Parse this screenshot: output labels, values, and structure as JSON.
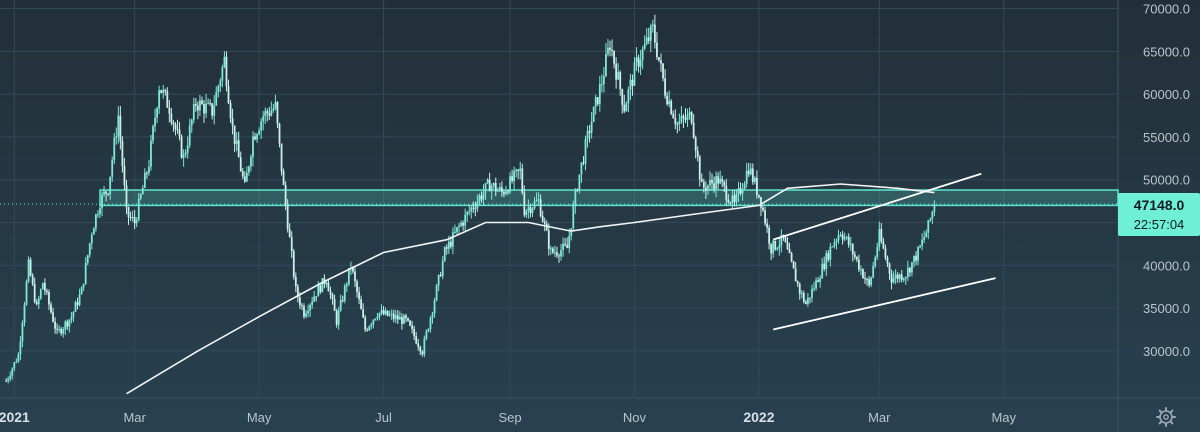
{
  "chart_data": {
    "type": "candlestick",
    "y_ticks": [
      "70000.0",
      "65000.0",
      "60000.0",
      "55000.0",
      "50000.0",
      "45000.0",
      "40000.0",
      "35000.0",
      "30000.0"
    ],
    "y_tick_values": [
      70000,
      65000,
      60000,
      55000,
      50000,
      45000,
      40000,
      35000,
      30000
    ],
    "ylim": [
      24500,
      71000
    ],
    "x_ticks": [
      {
        "label": "2021",
        "date": "2021-01-01",
        "bold": true
      },
      {
        "label": "Mar",
        "date": "2021-03-01",
        "bold": false
      },
      {
        "label": "May",
        "date": "2021-05-01",
        "bold": false
      },
      {
        "label": "Jul",
        "date": "2021-07-01",
        "bold": false
      },
      {
        "label": "Sep",
        "date": "2021-09-01",
        "bold": false
      },
      {
        "label": "Nov",
        "date": "2021-11-01",
        "bold": false
      },
      {
        "label": "2022",
        "date": "2022-01-01",
        "bold": true
      },
      {
        "label": "Mar",
        "date": "2022-03-01",
        "bold": false
      },
      {
        "label": "May",
        "date": "2022-05-01",
        "bold": false
      }
    ],
    "xlim": [
      "2020-12-25",
      "2022-06-26"
    ],
    "close_path": [
      [
        "2020-12-28",
        26500
      ],
      [
        "2021-01-03",
        29500
      ],
      [
        "2021-01-08",
        40000
      ],
      [
        "2021-01-12",
        35000
      ],
      [
        "2021-01-15",
        38000
      ],
      [
        "2021-01-22",
        32000
      ],
      [
        "2021-01-29",
        34000
      ],
      [
        "2021-02-03",
        37000
      ],
      [
        "2021-02-08",
        44000
      ],
      [
        "2021-02-12",
        47500
      ],
      [
        "2021-02-16",
        49000
      ],
      [
        "2021-02-21",
        57500
      ],
      [
        "2021-02-25",
        46000
      ],
      [
        "2021-03-01",
        45000
      ],
      [
        "2021-03-08",
        52000
      ],
      [
        "2021-03-13",
        61000
      ],
      [
        "2021-03-18",
        58500
      ],
      [
        "2021-03-25",
        52500
      ],
      [
        "2021-03-31",
        59000
      ],
      [
        "2021-04-08",
        58000
      ],
      [
        "2021-04-14",
        64000
      ],
      [
        "2021-04-18",
        56000
      ],
      [
        "2021-04-24",
        49000
      ],
      [
        "2021-04-28",
        55000
      ],
      [
        "2021-05-03",
        57500
      ],
      [
        "2021-05-09",
        58500
      ],
      [
        "2021-05-13",
        49000
      ],
      [
        "2021-05-19",
        37000
      ],
      [
        "2021-05-23",
        34500
      ],
      [
        "2021-05-28",
        36500
      ],
      [
        "2021-06-03",
        38500
      ],
      [
        "2021-06-08",
        33500
      ],
      [
        "2021-06-15",
        40000
      ],
      [
        "2021-06-22",
        32500
      ],
      [
        "2021-06-28",
        34500
      ],
      [
        "2021-07-05",
        34000
      ],
      [
        "2021-07-12",
        33500
      ],
      [
        "2021-07-20",
        30000
      ],
      [
        "2021-07-25",
        35000
      ],
      [
        "2021-07-31",
        41500
      ],
      [
        "2021-08-07",
        44500
      ],
      [
        "2021-08-14",
        47000
      ],
      [
        "2021-08-22",
        49500
      ],
      [
        "2021-08-28",
        48500
      ],
      [
        "2021-09-06",
        51000
      ],
      [
        "2021-09-08",
        46500
      ],
      [
        "2021-09-15",
        47500
      ],
      [
        "2021-09-21",
        41500
      ],
      [
        "2021-09-29",
        42000
      ],
      [
        "2021-10-04",
        49500
      ],
      [
        "2021-10-10",
        56000
      ],
      [
        "2021-10-16",
        61500
      ],
      [
        "2021-10-20",
        66000
      ],
      [
        "2021-10-27",
        58500
      ],
      [
        "2021-11-02",
        63500
      ],
      [
        "2021-11-10",
        67500
      ],
      [
        "2021-11-16",
        60500
      ],
      [
        "2021-11-22",
        56500
      ],
      [
        "2021-11-29",
        57500
      ],
      [
        "2021-12-04",
        49000
      ],
      [
        "2021-12-12",
        50000
      ],
      [
        "2021-12-20",
        47000
      ],
      [
        "2021-12-27",
        51500
      ],
      [
        "2022-01-02",
        47500
      ],
      [
        "2022-01-07",
        42000
      ],
      [
        "2022-01-13",
        43000
      ],
      [
        "2022-01-21",
        37000
      ],
      [
        "2022-01-24",
        35500
      ],
      [
        "2022-01-29",
        38000
      ],
      [
        "2022-02-06",
        42500
      ],
      [
        "2022-02-10",
        44000
      ],
      [
        "2022-02-14",
        42500
      ],
      [
        "2022-02-19",
        40000
      ],
      [
        "2022-02-24",
        37500
      ],
      [
        "2022-03-01",
        43500
      ],
      [
        "2022-03-07",
        38500
      ],
      [
        "2022-03-14",
        39000
      ],
      [
        "2022-03-20",
        41500
      ],
      [
        "2022-03-25",
        44500
      ],
      [
        "2022-03-28",
        47148
      ]
    ],
    "ma200_path": [
      [
        "2021-02-25",
        25000
      ],
      [
        "2021-04-01",
        30000
      ],
      [
        "2021-05-01",
        34000
      ],
      [
        "2021-06-01",
        38000
      ],
      [
        "2021-07-01",
        41500
      ],
      [
        "2021-08-01",
        43000
      ],
      [
        "2021-08-20",
        45000
      ],
      [
        "2021-09-10",
        45000
      ],
      [
        "2021-10-01",
        44000
      ],
      [
        "2021-10-15",
        44500
      ],
      [
        "2021-11-01",
        45000
      ],
      [
        "2021-12-01",
        46000
      ],
      [
        "2022-01-01",
        47000
      ],
      [
        "2022-01-15",
        49000
      ],
      [
        "2022-02-10",
        49500
      ],
      [
        "2022-03-10",
        49000
      ],
      [
        "2022-03-28",
        48500
      ]
    ],
    "upper_trendline": [
      [
        "2022-01-08",
        43000
      ],
      [
        "2022-04-20",
        50700
      ]
    ],
    "lower_trendline": [
      [
        "2022-01-08",
        32500
      ],
      [
        "2022-04-27",
        38500
      ]
    ],
    "support_band": [
      47000,
      48800
    ],
    "last_price": 47148,
    "last_price_label": "47148.0",
    "countdown_label": "22:57:04",
    "colors": {
      "up": "#7ee8d8",
      "down": "#c9f1ea",
      "band": "#5fe6d0",
      "ma": "#f2f4f5",
      "trendline": "#ffffff",
      "price_tag": "#6ff0d6",
      "grid": "#33495a"
    }
  },
  "toolbar": {
    "settings_icon": "gear-icon"
  }
}
